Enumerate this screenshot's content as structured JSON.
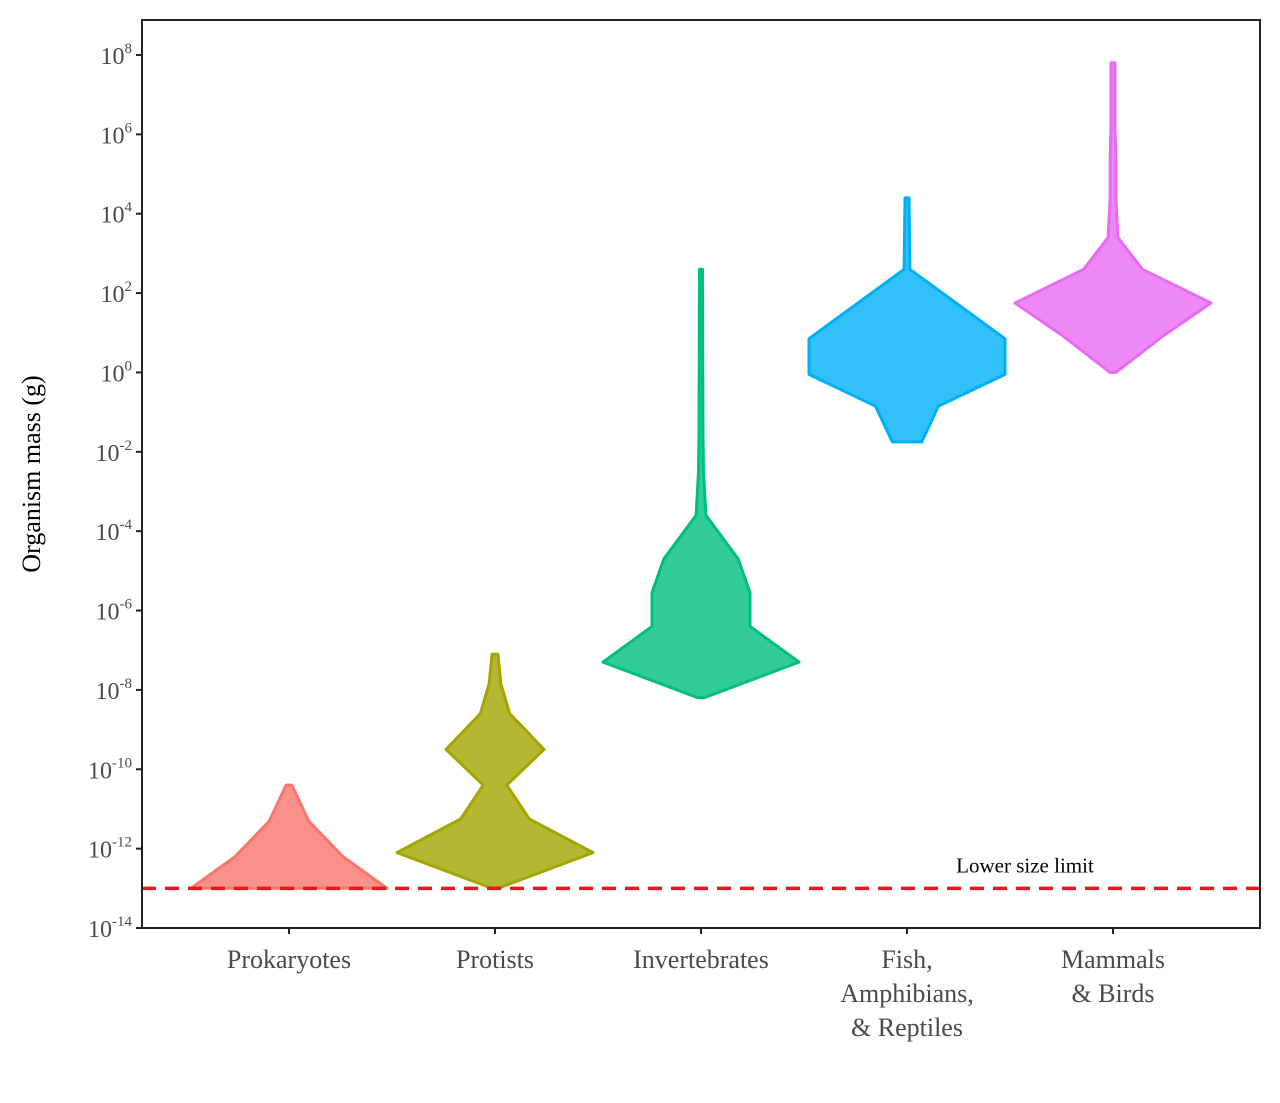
{
  "chart_data": {
    "type": "violin",
    "ylabel": "Organism mass (g)",
    "xlabel": "",
    "y_scale": "log10",
    "ylim_log10": [
      -14,
      9
    ],
    "yticks": [
      {
        "base": "10",
        "exp": "8"
      },
      {
        "base": "10",
        "exp": "6"
      },
      {
        "base": "10",
        "exp": "4"
      },
      {
        "base": "10",
        "exp": "2"
      },
      {
        "base": "10",
        "exp": "0"
      },
      {
        "base": "10",
        "exp": "-2"
      },
      {
        "base": "10",
        "exp": "-4"
      },
      {
        "base": "10",
        "exp": "-6"
      },
      {
        "base": "10",
        "exp": "-8"
      },
      {
        "base": "10",
        "exp": "-10"
      },
      {
        "base": "10",
        "exp": "-12"
      },
      {
        "base": "10",
        "exp": "-14"
      }
    ],
    "grid": false,
    "categories": [
      {
        "lines": [
          "Prokaryotes"
        ]
      },
      {
        "lines": [
          "Protists"
        ]
      },
      {
        "lines": [
          "Invertebrates"
        ]
      },
      {
        "lines": [
          "Fish,",
          "Amphibians,",
          "& Reptiles"
        ]
      },
      {
        "lines": [
          "Mammals",
          "& Birds"
        ]
      }
    ],
    "series": [
      {
        "category": "Prokaryotes",
        "color": "#F8766D",
        "profile": [
          [
            -13,
            1.0
          ],
          [
            -12.2,
            0.55
          ],
          [
            -11.3,
            0.2
          ],
          [
            -10.4,
            0.03
          ]
        ]
      },
      {
        "category": "Protists",
        "color": "#A3A500",
        "profile": [
          [
            -13,
            0.03
          ],
          [
            -12.1,
            1.0
          ],
          [
            -11.25,
            0.35
          ],
          [
            -10.4,
            0.12
          ],
          [
            -9.5,
            0.5
          ],
          [
            -8.6,
            0.15
          ],
          [
            -7.85,
            0.06
          ],
          [
            -7.1,
            0.03
          ]
        ]
      },
      {
        "category": "Invertebrates",
        "color": "#00BF7D",
        "profile": [
          [
            -8.2,
            0.03
          ],
          [
            -7.3,
            1.0
          ],
          [
            -6.4,
            0.5
          ],
          [
            -5.55,
            0.5
          ],
          [
            -4.7,
            0.38
          ],
          [
            -3.6,
            0.05
          ],
          [
            -2.5,
            0.025
          ],
          [
            -1.6,
            0.02
          ],
          [
            2.6,
            0.015
          ]
        ]
      },
      {
        "category": "Fish, Amphibians, & Reptiles",
        "color": "#00B0F6",
        "profile": [
          [
            -1.75,
            0.15
          ],
          [
            -0.85,
            0.32
          ],
          [
            -0.05,
            1.0
          ],
          [
            0.85,
            1.0
          ],
          [
            1.75,
            0.5
          ],
          [
            2.6,
            0.03
          ],
          [
            4.4,
            0.02
          ]
        ]
      },
      {
        "category": "Mammals & Birds",
        "color": "#E76BF3",
        "profile": [
          [
            0,
            0.03
          ],
          [
            0.9,
            0.5
          ],
          [
            1.75,
            1.0
          ],
          [
            2.6,
            0.3
          ],
          [
            3.4,
            0.05
          ],
          [
            4.4,
            0.03
          ],
          [
            5.3,
            0.03
          ],
          [
            6.2,
            0.02
          ],
          [
            7.8,
            0.02
          ]
        ]
      }
    ],
    "reference_line": {
      "value_log10": -13,
      "label": "Lower size limit",
      "color": "#E41A1C"
    }
  }
}
